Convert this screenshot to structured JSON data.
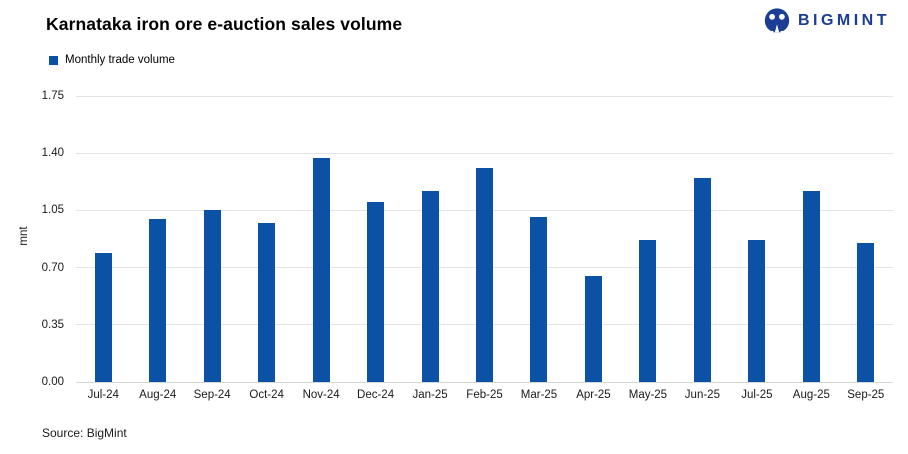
{
  "header": {
    "title": "Karnataka iron ore e-auction sales volume",
    "logo_text": "BIGMINT"
  },
  "legend": {
    "label": "Monthly trade volume"
  },
  "footer": {
    "source": "Source: BigMint"
  },
  "colors": {
    "bar": "#0b52a6",
    "brand": "#1a3e93",
    "gridline": "#e4e4e4"
  },
  "chart_data": {
    "type": "bar",
    "title": "Karnataka iron ore e-auction sales volume",
    "series_name": "Monthly trade volume",
    "categories": [
      "Jul-24",
      "Aug-24",
      "Sep-24",
      "Oct-24",
      "Nov-24",
      "Dec-24",
      "Jan-25",
      "Feb-25",
      "Mar-25",
      "Apr-25",
      "May-25",
      "Jun-25",
      "Jul-25",
      "Aug-25",
      "Sep-25"
    ],
    "values": [
      0.79,
      1.0,
      1.05,
      0.97,
      1.37,
      1.1,
      1.17,
      1.31,
      1.01,
      0.65,
      0.87,
      1.25,
      0.87,
      1.17,
      0.85
    ],
    "xlabel": "",
    "ylabel": "mnt",
    "ylim": [
      0,
      1.75
    ],
    "yticks": [
      0.0,
      0.35,
      0.7,
      1.05,
      1.4,
      1.75
    ],
    "grid": "horizontal",
    "legend_position": "top-left"
  }
}
